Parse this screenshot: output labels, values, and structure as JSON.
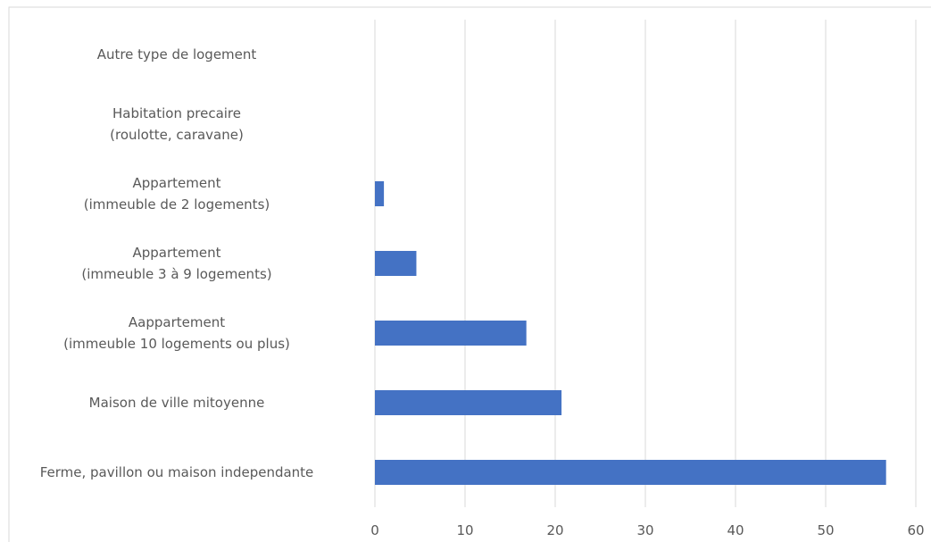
{
  "chart_data": {
    "type": "bar",
    "orientation": "horizontal",
    "categories": [
      "Autre type de logement",
      "Habitation precaire\n(roulotte, caravane)",
      "Appartement\n(immeuble de 2 logements)",
      "Appartement\n(immeuble 3 à 9 logements)",
      "Aappartement\n(immeuble 10 logements ou plus)",
      "Maison de ville mitoyenne",
      "Ferme, pavillon ou maison independante"
    ],
    "values": [
      0,
      0,
      1,
      4.6,
      16.8,
      20.7,
      56.7
    ],
    "color": "#4472c4",
    "xlim": [
      0,
      60
    ],
    "xticks": [
      0,
      10,
      20,
      30,
      40,
      50,
      60
    ],
    "grid": true
  }
}
